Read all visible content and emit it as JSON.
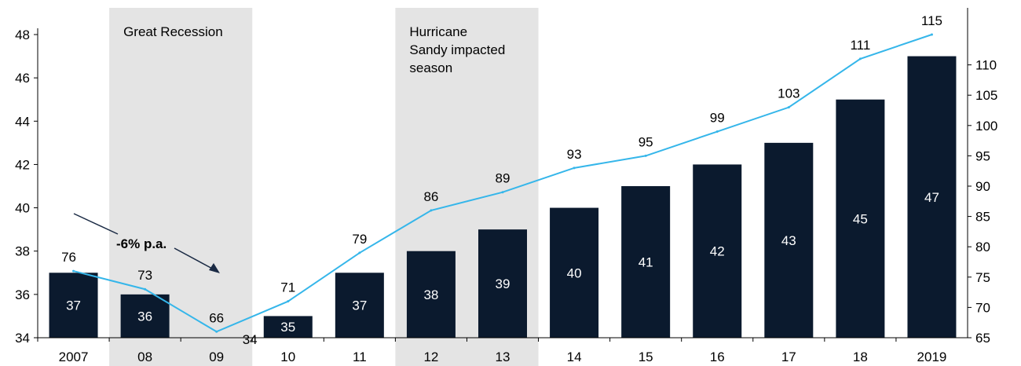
{
  "chart_data": {
    "type": "bar",
    "categories": [
      "2007",
      "08",
      "09",
      "10",
      "11",
      "12",
      "13",
      "14",
      "15",
      "16",
      "17",
      "18",
      "2019"
    ],
    "series": [
      {
        "values": [
          37,
          36,
          34,
          35,
          37,
          38,
          39,
          40,
          41,
          42,
          43,
          45,
          47
        ],
        "axis": "left",
        "kind": "bar",
        "color": "#0b1a2e"
      },
      {
        "values": [
          76,
          73,
          66,
          71,
          79,
          86,
          89,
          93,
          95,
          99,
          103,
          111,
          115
        ],
        "axis": "right",
        "kind": "line",
        "color": "#35b6ea"
      }
    ],
    "bar_labels": [
      "37",
      "36",
      "34",
      "35",
      "37",
      "38",
      "39",
      "40",
      "41",
      "42",
      "43",
      "45",
      "47"
    ],
    "line_labels": [
      "76",
      "73",
      "66",
      "71",
      "79",
      "86",
      "89",
      "93",
      "95",
      "99",
      "103",
      "111",
      "115"
    ],
    "y_left": {
      "ylim": [
        34,
        48
      ],
      "ticks": [
        "34",
        "36",
        "38",
        "40",
        "42",
        "44",
        "46",
        "48"
      ]
    },
    "y_right": {
      "ylim": [
        65,
        115
      ],
      "ticks": [
        "65",
        "70",
        "75",
        "80",
        "85",
        "90",
        "95",
        "100",
        "105",
        "110"
      ]
    },
    "shaded_regions": [
      {
        "from": "08",
        "to": "09",
        "label": [
          "Great Recession"
        ]
      },
      {
        "from": "12",
        "to": "13",
        "label": [
          "Hurricane",
          "Sandy impacted",
          "season"
        ]
      }
    ],
    "annotation": {
      "text": "-6% p.a."
    },
    "grid": false,
    "legend": "none",
    "colors": {
      "bar": "#0b1a2e",
      "line": "#35b6ea",
      "shade": "#e4e4e4",
      "axis": "#000000"
    }
  }
}
